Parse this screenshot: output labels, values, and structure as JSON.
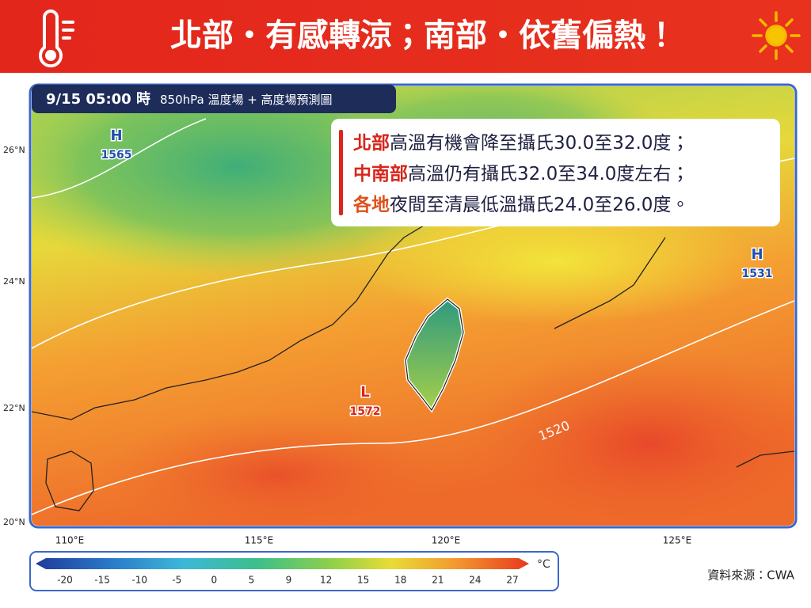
{
  "header": {
    "title": "北部・有感轉涼；南部・依舊偏熱！"
  },
  "map": {
    "time_label": "9/15 05:00 時",
    "product_label": "850hPa 溫度場 + 高度場預測圖",
    "latitudes": [
      "26°N",
      "24°N",
      "22°N",
      "20°N"
    ],
    "longitudes": [
      "110°E",
      "115°E",
      "120°E",
      "125°E"
    ],
    "pressure_centers": [
      {
        "type": "H",
        "value": "1565"
      },
      {
        "type": "H",
        "value": "1531"
      },
      {
        "type": "L",
        "value": "1572"
      }
    ],
    "contour_label": "1520"
  },
  "info_box": {
    "lines": [
      {
        "highlight": "北部",
        "text": "高溫有機會降至攝氏30.0至32.0度；"
      },
      {
        "highlight": "中南部",
        "text": "高溫仍有攝氏32.0至34.0度左右；"
      },
      {
        "highlight": "各地",
        "text": "夜間至清晨低溫攝氏24.0至26.0度。"
      }
    ]
  },
  "colorbar": {
    "ticks": [
      "-20",
      "-15",
      "-10",
      "-5",
      "0",
      "5",
      "9",
      "12",
      "15",
      "18",
      "21",
      "24",
      "27"
    ],
    "unit": "°C"
  },
  "source": "資料來源：CWA"
}
